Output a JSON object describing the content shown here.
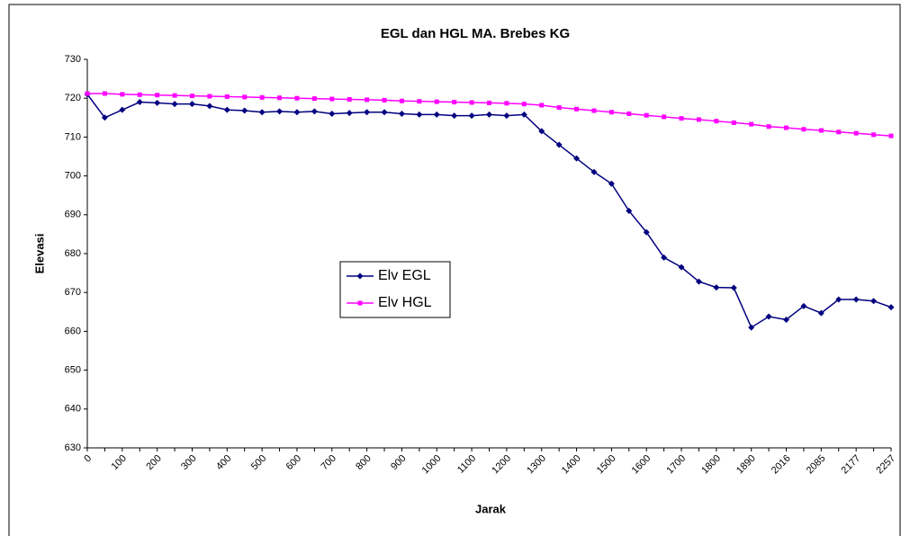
{
  "chart_data": {
    "type": "line",
    "title": "EGL dan HGL MA. Brebes KG",
    "x_label": "Jarak",
    "y_label": "Elevasi",
    "categories": [
      "0",
      null,
      "100",
      null,
      "200",
      null,
      "300",
      null,
      "400",
      null,
      "500",
      null,
      "600",
      null,
      "700",
      null,
      "800",
      null,
      "900",
      null,
      "1000",
      null,
      "1100",
      null,
      "1200",
      null,
      "1300",
      null,
      "1400",
      null,
      "1500",
      null,
      "1600",
      null,
      "1700",
      null,
      "1800",
      null,
      "1890",
      null,
      "2016",
      null,
      "2085",
      null,
      "2177",
      null,
      "2257"
    ],
    "series": [
      {
        "name": "Elv EGL",
        "color": "#000080",
        "marker": "diamond",
        "values": [
          721,
          715,
          717,
          719,
          718.8,
          718.5,
          718.5,
          718,
          717,
          716.8,
          716.4,
          716.6,
          716.4,
          716.6,
          716,
          716.2,
          716.4,
          716.4,
          716,
          715.8,
          715.8,
          715.5,
          715.5,
          715.8,
          715.5,
          715.8,
          711.5,
          708,
          704.5,
          701,
          698,
          691,
          685.5,
          679,
          676.5,
          672.8,
          671.3,
          671.2,
          661,
          663.8,
          663,
          666.5,
          664.7,
          668.2,
          668.2,
          667.8,
          666.2
        ]
      },
      {
        "name": "Elv HGL",
        "color": "#ff00ff",
        "marker": "square",
        "values": [
          721.2,
          721.2,
          721.0,
          720.9,
          720.8,
          720.7,
          720.6,
          720.5,
          720.4,
          720.3,
          720.2,
          720.1,
          720.0,
          719.9,
          719.8,
          719.7,
          719.6,
          719.5,
          719.3,
          719.2,
          719.1,
          719.0,
          718.9,
          718.8,
          718.7,
          718.5,
          718.2,
          717.6,
          717.2,
          716.8,
          716.4,
          716.0,
          715.6,
          715.2,
          714.8,
          714.5,
          714.1,
          713.7,
          713.3,
          712.7,
          712.4,
          712.0,
          711.7,
          711.3,
          711.0,
          710.6,
          710.3
        ]
      }
    ],
    "ylim": [
      630,
      730
    ],
    "yticks": [
      630,
      640,
      650,
      660,
      670,
      680,
      690,
      700,
      710,
      720,
      730
    ],
    "grid": false
  }
}
